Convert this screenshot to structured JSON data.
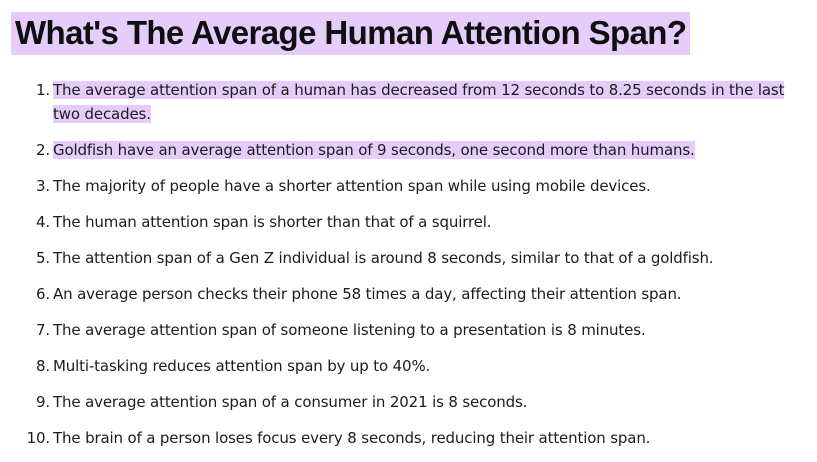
{
  "article": {
    "title": "What's The Average Human Attention Span?",
    "highlight_color": "#e5ccfb",
    "items": [
      {
        "number": "1.",
        "text": "The average attention span of a human has decreased from 12 seconds to 8.25 seconds in the last two decades."
      },
      {
        "number": "2.",
        "text": "Goldfish have an average attention span of 9 seconds, one second more than humans."
      },
      {
        "number": "3.",
        "text": "The majority of people have a shorter attention span while using mobile devices."
      },
      {
        "number": "4.",
        "text": "The human attention span is shorter than that of a squirrel."
      },
      {
        "number": "5.",
        "text": "The attention span of a Gen Z individual is around 8 seconds, similar to that of a goldfish."
      },
      {
        "number": "6.",
        "text": "An average person checks their phone 58 times a day, affecting their attention span."
      },
      {
        "number": "7.",
        "text": "The average attention span of someone listening to a presentation is 8 minutes."
      },
      {
        "number": "8.",
        "text": "Multi-tasking reduces attention span by up to 40%."
      },
      {
        "number": "9.",
        "text": "The average attention span of a consumer in 2021 is 8 seconds."
      },
      {
        "number": "10.",
        "text": "The brain of a person loses focus every 8 seconds, reducing their attention span."
      }
    ]
  }
}
